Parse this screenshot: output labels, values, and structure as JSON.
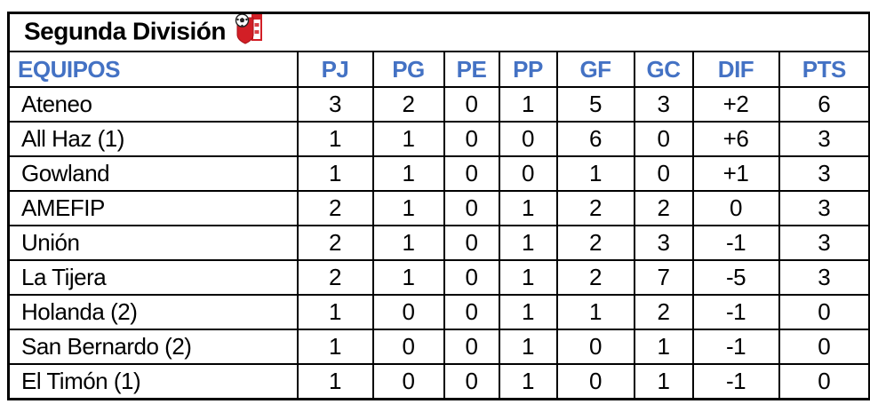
{
  "title": {
    "text": "Segunda División",
    "logo_icon": "club-crest-icon"
  },
  "standings": {
    "columns": [
      "EQUIPOS",
      "PJ",
      "PG",
      "PE",
      "PP",
      "GF",
      "GC",
      "DIF",
      "PTS"
    ],
    "rows": [
      [
        "Ateneo",
        "3",
        "2",
        "0",
        "1",
        "5",
        "3",
        "+2",
        "6"
      ],
      [
        "All Haz (1)",
        "1",
        "1",
        "0",
        "0",
        "6",
        "0",
        "+6",
        "3"
      ],
      [
        "Gowland",
        "1",
        "1",
        "0",
        "0",
        "1",
        "0",
        "+1",
        "3"
      ],
      [
        "AMEFIP",
        "2",
        "1",
        "0",
        "1",
        "2",
        "2",
        "0",
        "3"
      ],
      [
        "Unión",
        "2",
        "1",
        "0",
        "1",
        "2",
        "3",
        "-1",
        "3"
      ],
      [
        "La Tijera",
        "2",
        "1",
        "0",
        "1",
        "2",
        "7",
        "-5",
        "3"
      ],
      [
        "Holanda (2)",
        "1",
        "0",
        "0",
        "1",
        "1",
        "2",
        "-1",
        "0"
      ],
      [
        "San Bernardo (2)",
        "1",
        "0",
        "0",
        "1",
        "0",
        "1",
        "-1",
        "0"
      ],
      [
        "El Timón (1)",
        "1",
        "0",
        "0",
        "1",
        "0",
        "1",
        "-1",
        "0"
      ]
    ]
  },
  "colors": {
    "header_text": "#4472C4",
    "title_text": "#000000",
    "border": "#000000",
    "background": "#FFFFFF",
    "crest_red": "#D21F26",
    "crest_dark": "#222222"
  }
}
